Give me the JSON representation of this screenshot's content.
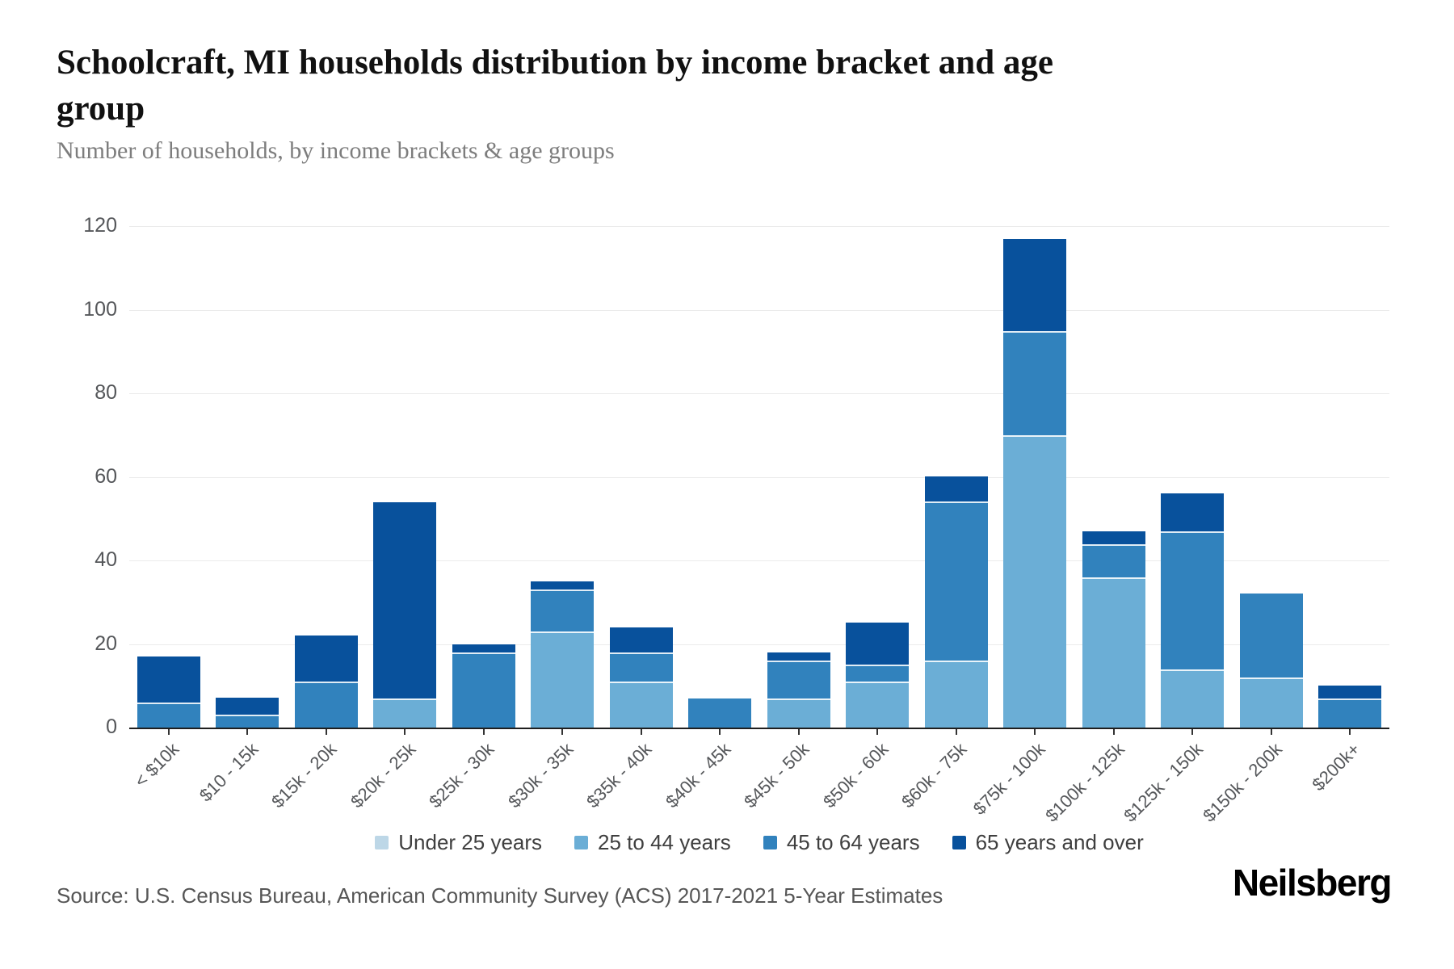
{
  "title": "Schoolcraft, MI households distribution by income bracket and age group",
  "subtitle": "Number of households, by income brackets & age groups",
  "source": "Source: U.S. Census Bureau, American Community Survey (ACS) 2017-2021 5-Year Estimates",
  "brand": "Neilsberg",
  "chart_data": {
    "type": "bar",
    "stacked": true,
    "title": "Schoolcraft, MI households distribution by income bracket and age group",
    "xlabel": "",
    "ylabel": "Number of households",
    "categories": [
      "< $10k",
      "$10 - 15k",
      "$15k - 20k",
      "$20k - 25k",
      "$25k - 30k",
      "$30k - 35k",
      "$35k - 40k",
      "$40k - 45k",
      "$45k - 50k",
      "$50k - 60k",
      "$60k - 75k",
      "$75k - 100k",
      "$100k - 125k",
      "$125k - 150k",
      "$150k - 200k",
      "$200k+"
    ],
    "series": [
      {
        "name": "Under 25 years",
        "color": "#bdd7e7",
        "values": [
          0,
          0,
          0,
          0,
          0,
          0,
          0,
          0,
          0,
          0,
          0,
          0,
          0,
          0,
          0,
          0
        ]
      },
      {
        "name": "25 to 44 years",
        "color": "#6baed6",
        "values": [
          0,
          0,
          0,
          7,
          0,
          23,
          11,
          0,
          7,
          11,
          16,
          70,
          36,
          14,
          12,
          0
        ]
      },
      {
        "name": "45 to 64 years",
        "color": "#3182bd",
        "values": [
          6,
          3,
          11,
          0,
          18,
          10,
          7,
          7,
          9,
          4,
          38,
          25,
          8,
          33,
          20,
          7
        ]
      },
      {
        "name": "65 years and over",
        "color": "#08519c",
        "values": [
          11,
          4,
          11,
          47,
          2,
          2,
          6,
          0,
          2,
          10,
          6,
          22,
          3,
          9,
          0,
          3
        ]
      }
    ],
    "totals": [
      17,
      7,
      22,
      54,
      20,
      35,
      24,
      7,
      18,
      25,
      60,
      117,
      47,
      56,
      32,
      10
    ],
    "ylim": [
      0,
      120
    ],
    "yticks": [
      0,
      20,
      40,
      60,
      80,
      100,
      120
    ],
    "grid": "horizontal",
    "legend_position": "bottom"
  }
}
